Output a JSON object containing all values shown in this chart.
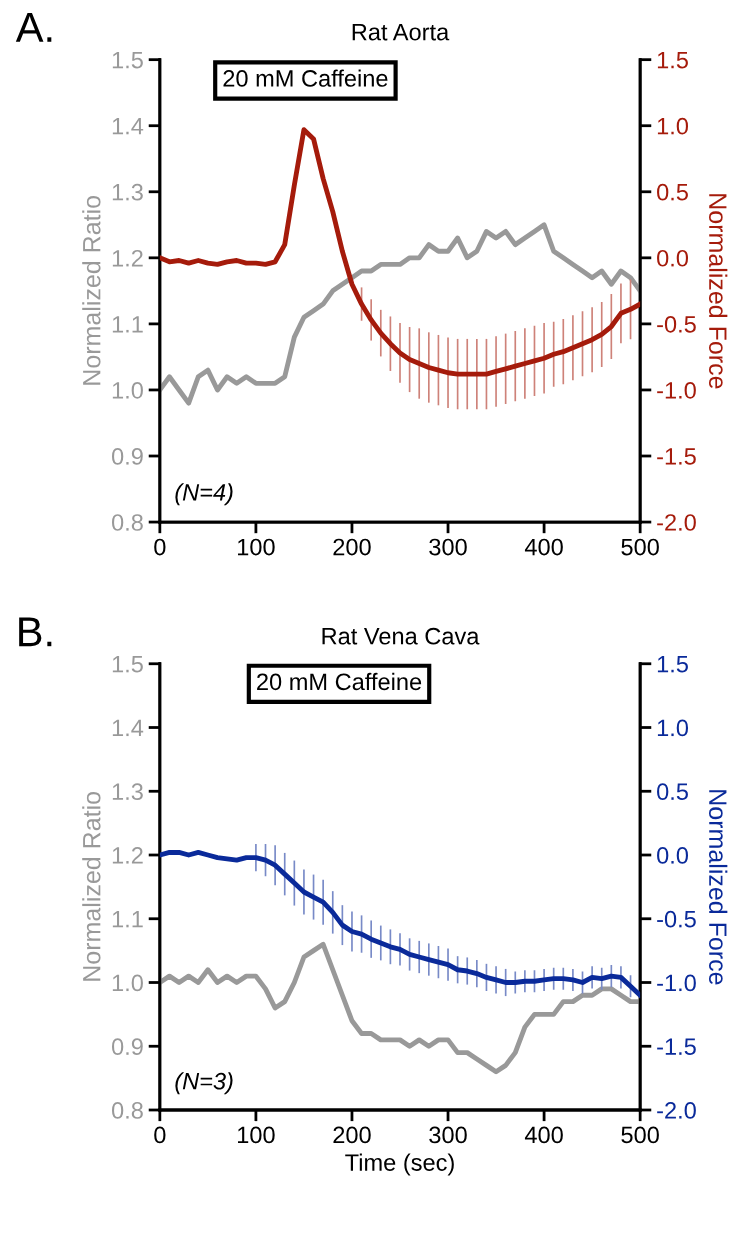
{
  "chart_data": [
    {
      "type": "line",
      "title": "Rat Aorta",
      "ylabel": "Normalized Ratio",
      "y2label": "Normalized Force",
      "x": [
        0,
        10,
        20,
        30,
        40,
        50,
        60,
        70,
        80,
        90,
        100,
        110,
        120,
        130,
        140,
        150,
        160,
        170,
        180,
        190,
        200,
        210,
        220,
        230,
        240,
        250,
        260,
        270,
        280,
        290,
        300,
        310,
        320,
        330,
        340,
        350,
        360,
        370,
        380,
        390,
        400,
        410,
        420,
        430,
        440,
        450,
        460,
        470,
        480,
        490,
        500
      ],
      "series": [
        {
          "color": "#999999",
          "values": [
            1.0,
            1.02,
            1.0,
            0.98,
            1.02,
            1.03,
            1.0,
            1.02,
            1.01,
            1.02,
            1.01,
            1.01,
            1.01,
            1.02,
            1.08,
            1.11,
            1.12,
            1.13,
            1.15,
            1.16,
            1.17,
            1.18,
            1.18,
            1.19,
            1.19,
            1.19,
            1.2,
            1.2,
            1.22,
            1.21,
            1.21,
            1.23,
            1.2,
            1.21,
            1.24,
            1.23,
            1.24,
            1.22,
            1.23,
            1.24,
            1.25,
            1.21,
            1.2,
            1.19,
            1.18,
            1.17,
            1.18,
            1.16,
            1.18,
            1.17,
            1.15
          ]
        },
        {
          "color": "#a51b0b",
          "axis": "y2",
          "values": [
            0.0,
            -0.03,
            -0.02,
            -0.04,
            -0.02,
            -0.04,
            -0.05,
            -0.03,
            -0.02,
            -0.04,
            -0.04,
            -0.05,
            -0.03,
            0.1,
            0.55,
            0.97,
            0.9,
            0.6,
            0.35,
            0.05,
            -0.2,
            -0.35,
            -0.47,
            -0.57,
            -0.65,
            -0.72,
            -0.77,
            -0.8,
            -0.83,
            -0.85,
            -0.87,
            -0.88,
            -0.88,
            -0.88,
            -0.88,
            -0.86,
            -0.84,
            -0.82,
            -0.8,
            -0.78,
            -0.76,
            -0.73,
            -0.71,
            -0.68,
            -0.65,
            -0.62,
            -0.58,
            -0.52,
            -0.42,
            -0.39,
            -0.35
          ],
          "errors": [
            null,
            null,
            null,
            null,
            null,
            null,
            null,
            null,
            null,
            null,
            null,
            null,
            null,
            null,
            null,
            null,
            null,
            null,
            null,
            null,
            null,
            0.12,
            0.15,
            0.17,
            0.2,
            0.22,
            0.24,
            0.26,
            0.26,
            0.26,
            0.26,
            0.26,
            0.26,
            0.26,
            0.26,
            0.26,
            0.26,
            0.26,
            0.26,
            0.26,
            0.26,
            0.24,
            0.24,
            0.24,
            0.24,
            0.24,
            0.24,
            0.24,
            0.22,
            0.22,
            null
          ]
        }
      ],
      "xlim": [
        0,
        500
      ],
      "xticks": [
        0,
        100,
        200,
        300,
        400,
        500
      ],
      "ylim": [
        0.8,
        1.5
      ],
      "yticks": [
        0.8,
        0.9,
        {
          "value": 1,
          "label": "1.0"
        },
        1.1,
        1.2,
        1.3,
        1.4,
        1.5
      ],
      "y2lim": [
        -2.0,
        1.5
      ],
      "y2ticks": [
        {
          "value": -2,
          "label": "-2.0"
        },
        -1.5,
        {
          "value": -1,
          "label": "-1.0"
        },
        -0.5,
        {
          "value": 0,
          "label": "0.0"
        },
        0.5,
        {
          "value": 1,
          "label": "1.0"
        },
        1.5
      ],
      "annotations": [
        "A.",
        "20 mM Caffeine",
        "(N=4)"
      ]
    },
    {
      "type": "line",
      "title": "Rat Vena Cava",
      "xlabel": "Time (sec)",
      "ylabel": "Normalized Ratio",
      "y2label": "Normalized Force",
      "x": [
        0,
        10,
        20,
        30,
        40,
        50,
        60,
        70,
        80,
        90,
        100,
        110,
        120,
        130,
        140,
        150,
        160,
        170,
        180,
        190,
        200,
        210,
        220,
        230,
        240,
        250,
        260,
        270,
        280,
        290,
        300,
        310,
        320,
        330,
        340,
        350,
        360,
        370,
        380,
        390,
        400,
        410,
        420,
        430,
        440,
        450,
        460,
        470,
        480,
        490,
        500
      ],
      "series": [
        {
          "color": "#999999",
          "values": [
            1.0,
            1.01,
            1.0,
            1.01,
            1.0,
            1.02,
            1.0,
            1.01,
            1.0,
            1.01,
            1.01,
            0.99,
            0.96,
            0.97,
            1.0,
            1.04,
            1.05,
            1.06,
            1.02,
            0.98,
            0.94,
            0.92,
            0.92,
            0.91,
            0.91,
            0.91,
            0.9,
            0.91,
            0.9,
            0.91,
            0.91,
            0.89,
            0.89,
            0.88,
            0.87,
            0.86,
            0.87,
            0.89,
            0.93,
            0.95,
            0.95,
            0.95,
            0.97,
            0.97,
            0.98,
            0.98,
            0.99,
            0.99,
            0.98,
            0.97,
            0.97
          ]
        },
        {
          "color": "#0a2a9a",
          "axis": "y2",
          "values": [
            0.0,
            0.02,
            0.02,
            0.0,
            0.02,
            0.0,
            -0.02,
            -0.03,
            -0.04,
            -0.02,
            -0.02,
            -0.04,
            -0.08,
            -0.15,
            -0.22,
            -0.29,
            -0.33,
            -0.37,
            -0.45,
            -0.55,
            -0.6,
            -0.62,
            -0.66,
            -0.69,
            -0.72,
            -0.74,
            -0.78,
            -0.8,
            -0.82,
            -0.84,
            -0.86,
            -0.9,
            -0.91,
            -0.93,
            -0.96,
            -0.98,
            -1.0,
            -1.0,
            -0.99,
            -0.99,
            -0.98,
            -0.97,
            -0.97,
            -0.98,
            -1.0,
            -0.96,
            -0.97,
            -0.95,
            -0.96,
            -1.03,
            -1.1
          ],
          "errors": [
            null,
            null,
            null,
            null,
            null,
            null,
            null,
            null,
            null,
            null,
            0.1,
            0.12,
            0.15,
            0.16,
            0.17,
            0.17,
            0.17,
            0.17,
            0.16,
            0.15,
            0.15,
            0.14,
            0.14,
            0.13,
            0.13,
            0.12,
            0.12,
            0.12,
            0.12,
            0.12,
            0.12,
            0.1,
            0.1,
            0.1,
            0.1,
            0.1,
            0.1,
            0.08,
            0.08,
            0.08,
            0.08,
            0.08,
            0.08,
            0.08,
            0.08,
            0.08,
            0.08,
            0.08,
            0.08,
            0.08,
            null
          ]
        }
      ],
      "xlim": [
        0,
        500
      ],
      "xticks": [
        0,
        100,
        200,
        300,
        400,
        500
      ],
      "ylim": [
        0.8,
        1.5
      ],
      "yticks": [
        0.8,
        0.9,
        {
          "value": 1,
          "label": "1.0"
        },
        1.1,
        1.2,
        1.3,
        1.4,
        1.5
      ],
      "y2lim": [
        -2.0,
        1.5
      ],
      "y2ticks": [
        {
          "value": -2,
          "label": "-2.0"
        },
        -1.5,
        {
          "value": -1,
          "label": "-1.0"
        },
        -0.5,
        {
          "value": 0,
          "label": "0.0"
        },
        0.5,
        {
          "value": 1,
          "label": "1.0"
        },
        1.5
      ],
      "annotations": [
        "B.",
        "20 mM Caffeine",
        "(N=3)"
      ]
    }
  ]
}
